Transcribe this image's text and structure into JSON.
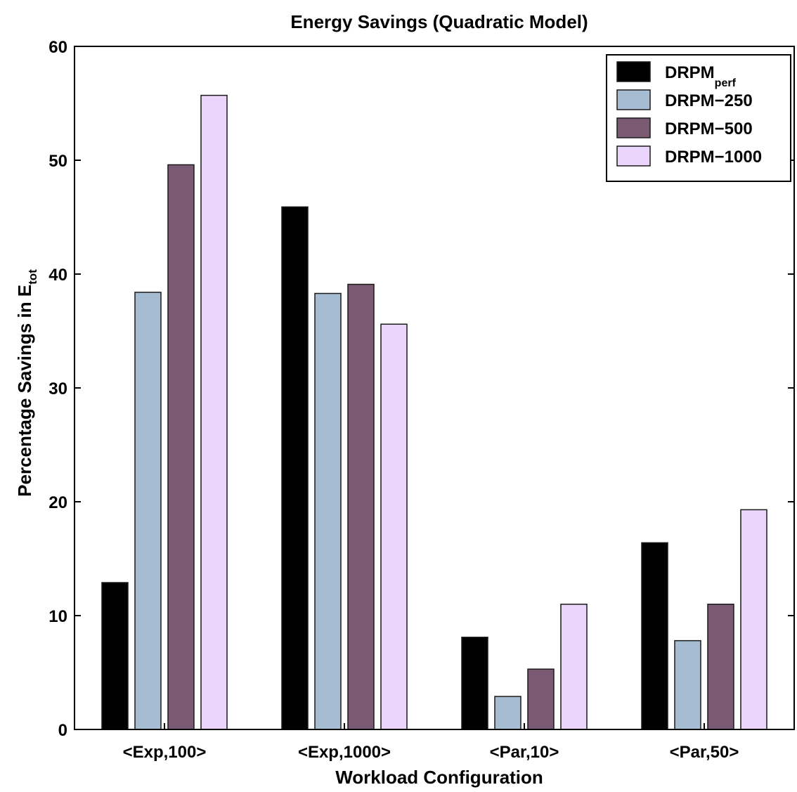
{
  "chart_data": {
    "type": "bar",
    "title": "Energy Savings (Quadratic Model)",
    "xlabel": "Workload Configuration",
    "ylabel": {
      "main": "Percentage Savings in E",
      "sub": "tot"
    },
    "ylim": [
      0,
      60
    ],
    "yticks": [
      "0",
      "10",
      "20",
      "30",
      "40",
      "50",
      "60"
    ],
    "categories": [
      "<Exp,100>",
      "<Exp,1000>",
      "<Par,10>",
      "<Par,50>"
    ],
    "series": [
      {
        "name": "DRPM",
        "name_sub": "perf",
        "color": "#000000",
        "values": [
          12.9,
          45.9,
          8.1,
          16.4
        ]
      },
      {
        "name": "DRPM−250",
        "name_sub": "",
        "color": "#a6bcd3",
        "values": [
          38.4,
          38.3,
          2.9,
          7.8
        ]
      },
      {
        "name": "DRPM−500",
        "name_sub": "",
        "color": "#7a5a72",
        "values": [
          49.6,
          39.1,
          5.3,
          11.0
        ]
      },
      {
        "name": "DRPM−1000",
        "name_sub": "",
        "color": "#ecd5fc",
        "values": [
          55.7,
          35.6,
          11.0,
          19.3
        ]
      }
    ],
    "grid": false,
    "legend_position": "top-right"
  }
}
